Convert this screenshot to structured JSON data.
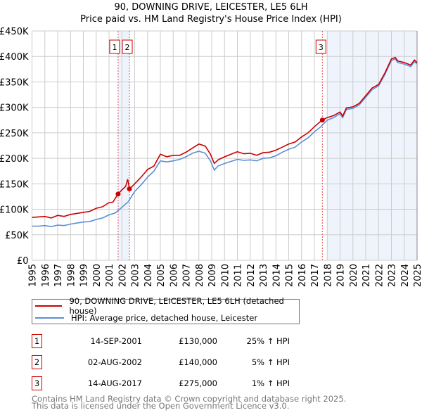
{
  "header": {
    "title": "90, DOWNING DRIVE, LEICESTER, LE5 6LH",
    "subtitle": "Price paid vs. HM Land Registry's House Price Index (HPI)"
  },
  "chart_data": {
    "type": "line",
    "title": "90, DOWNING DRIVE, LEICESTER, LE5 6LH — Price paid vs. HM Land Registry's House Price Index (HPI)",
    "xlim": [
      1995,
      2025
    ],
    "ylim": [
      0,
      450000
    ],
    "grid": true,
    "yticks": [
      {
        "v": 0,
        "label": "£0"
      },
      {
        "v": 50000,
        "label": "£50K"
      },
      {
        "v": 100000,
        "label": "£100K"
      },
      {
        "v": 150000,
        "label": "£150K"
      },
      {
        "v": 200000,
        "label": "£200K"
      },
      {
        "v": 250000,
        "label": "£250K"
      },
      {
        "v": 300000,
        "label": "£300K"
      },
      {
        "v": 350000,
        "label": "£350K"
      },
      {
        "v": 400000,
        "label": "£400K"
      },
      {
        "v": 450000,
        "label": "£450K"
      }
    ],
    "xticks": [
      "1995",
      "1996",
      "1997",
      "1998",
      "1999",
      "2000",
      "2001",
      "2002",
      "2003",
      "2004",
      "2005",
      "2006",
      "2007",
      "2008",
      "2009",
      "2010",
      "2011",
      "2012",
      "2013",
      "2014",
      "2015",
      "2016",
      "2017",
      "2018",
      "2019",
      "2020",
      "2021",
      "2022",
      "2023",
      "2024",
      "2025"
    ],
    "shaded_ranges": [
      [
        2001.7,
        2002.6
      ],
      [
        2018.0,
        2025.0
      ]
    ],
    "series": [
      {
        "name": "90, DOWNING DRIVE, LEICESTER, LE5 6LH (detached house)",
        "color": "#cc0000",
        "points": [
          [
            1995,
            84
          ],
          [
            1995.5,
            85
          ],
          [
            1996,
            86
          ],
          [
            1996.5,
            83
          ],
          [
            1997,
            88
          ],
          [
            1997.5,
            86
          ],
          [
            1998,
            90
          ],
          [
            1998.5,
            92
          ],
          [
            1999,
            94
          ],
          [
            1999.5,
            96
          ],
          [
            2000,
            102
          ],
          [
            2000.5,
            105
          ],
          [
            2001,
            113
          ],
          [
            2001.3,
            114
          ],
          [
            2001.7,
            130
          ],
          [
            2002,
            138
          ],
          [
            2002.3,
            145
          ],
          [
            2002.45,
            159
          ],
          [
            2002.6,
            140
          ],
          [
            2003,
            150
          ],
          [
            2003.5,
            163
          ],
          [
            2004,
            178
          ],
          [
            2004.5,
            185
          ],
          [
            2005,
            208
          ],
          [
            2005.5,
            203
          ],
          [
            2006,
            206
          ],
          [
            2006.5,
            206
          ],
          [
            2007,
            212
          ],
          [
            2007.5,
            220
          ],
          [
            2008,
            228
          ],
          [
            2008.5,
            224
          ],
          [
            2008.9,
            208
          ],
          [
            2009.2,
            190
          ],
          [
            2009.5,
            197
          ],
          [
            2010,
            203
          ],
          [
            2010.5,
            208
          ],
          [
            2011,
            213
          ],
          [
            2011.5,
            209
          ],
          [
            2012,
            210
          ],
          [
            2012.5,
            206
          ],
          [
            2013,
            211
          ],
          [
            2013.5,
            212
          ],
          [
            2014,
            216
          ],
          [
            2014.5,
            222
          ],
          [
            2015,
            228
          ],
          [
            2015.5,
            232
          ],
          [
            2016,
            242
          ],
          [
            2016.5,
            250
          ],
          [
            2017,
            262
          ],
          [
            2017.6,
            275
          ],
          [
            2018,
            280
          ],
          [
            2018.5,
            284
          ],
          [
            2019,
            291
          ],
          [
            2019.2,
            283
          ],
          [
            2019.5,
            299
          ],
          [
            2020,
            301
          ],
          [
            2020.5,
            308
          ],
          [
            2021,
            323
          ],
          [
            2021.5,
            338
          ],
          [
            2022,
            345
          ],
          [
            2022.5,
            368
          ],
          [
            2023,
            395
          ],
          [
            2023.3,
            398
          ],
          [
            2023.5,
            391
          ],
          [
            2024,
            388
          ],
          [
            2024.5,
            383
          ],
          [
            2024.8,
            393
          ],
          [
            2025,
            388
          ]
        ]
      },
      {
        "name": "HPI: Average price, detached house, Leicester",
        "color": "#5b8fd4",
        "points": [
          [
            1995,
            67
          ],
          [
            1995.5,
            67
          ],
          [
            1996,
            68
          ],
          [
            1996.5,
            66
          ],
          [
            1997,
            69
          ],
          [
            1997.5,
            68
          ],
          [
            1998,
            71
          ],
          [
            1998.5,
            73
          ],
          [
            1999,
            75
          ],
          [
            1999.5,
            76
          ],
          [
            2000,
            80
          ],
          [
            2000.5,
            83
          ],
          [
            2001,
            89
          ],
          [
            2001.5,
            93
          ],
          [
            2002,
            104
          ],
          [
            2002.5,
            115
          ],
          [
            2003,
            135
          ],
          [
            2003.5,
            148
          ],
          [
            2004,
            163
          ],
          [
            2004.5,
            175
          ],
          [
            2005,
            195
          ],
          [
            2005.5,
            193
          ],
          [
            2006,
            195
          ],
          [
            2006.5,
            198
          ],
          [
            2007,
            203
          ],
          [
            2007.5,
            210
          ],
          [
            2008,
            214
          ],
          [
            2008.5,
            210
          ],
          [
            2008.9,
            195
          ],
          [
            2009.2,
            177
          ],
          [
            2009.5,
            185
          ],
          [
            2010,
            190
          ],
          [
            2010.5,
            194
          ],
          [
            2011,
            198
          ],
          [
            2011.5,
            196
          ],
          [
            2012,
            197
          ],
          [
            2012.5,
            195
          ],
          [
            2013,
            200
          ],
          [
            2013.5,
            201
          ],
          [
            2014,
            205
          ],
          [
            2014.5,
            212
          ],
          [
            2015,
            218
          ],
          [
            2015.5,
            222
          ],
          [
            2016,
            232
          ],
          [
            2016.5,
            240
          ],
          [
            2017,
            252
          ],
          [
            2017.5,
            262
          ],
          [
            2018,
            275
          ],
          [
            2018.5,
            280
          ],
          [
            2019,
            288
          ],
          [
            2019.2,
            280
          ],
          [
            2019.5,
            296
          ],
          [
            2020,
            298
          ],
          [
            2020.5,
            305
          ],
          [
            2021,
            320
          ],
          [
            2021.5,
            335
          ],
          [
            2022,
            342
          ],
          [
            2022.5,
            365
          ],
          [
            2023,
            392
          ],
          [
            2023.3,
            395
          ],
          [
            2023.5,
            388
          ],
          [
            2024,
            385
          ],
          [
            2024.5,
            380
          ],
          [
            2024.8,
            390
          ],
          [
            2025,
            385
          ]
        ]
      }
    ],
    "sales": [
      {
        "label": "1",
        "x": 2001.71,
        "y": 130
      },
      {
        "label": "2",
        "x": 2002.59,
        "y": 140
      },
      {
        "label": "3",
        "x": 2017.62,
        "y": 275
      }
    ],
    "y_units": "thousands GBP for points"
  },
  "legend": {
    "items": [
      {
        "label": "90, DOWNING DRIVE, LEICESTER, LE5 6LH (detached house)",
        "color": "#cc0000"
      },
      {
        "label": "HPI: Average price, detached house, Leicester",
        "color": "#5b8fd4"
      }
    ]
  },
  "transactions": [
    {
      "num": "1",
      "date": "14-SEP-2001",
      "price": "£130,000",
      "hpi": "25% ↑ HPI"
    },
    {
      "num": "2",
      "date": "02-AUG-2002",
      "price": "£140,000",
      "hpi": "5% ↑ HPI"
    },
    {
      "num": "3",
      "date": "14-AUG-2017",
      "price": "£275,000",
      "hpi": "1% ↑ HPI"
    }
  ],
  "footer": {
    "line1": "Contains HM Land Registry data © Crown copyright and database right 2025.",
    "line2": "This data is licensed under the Open Government Licence v3.0."
  }
}
